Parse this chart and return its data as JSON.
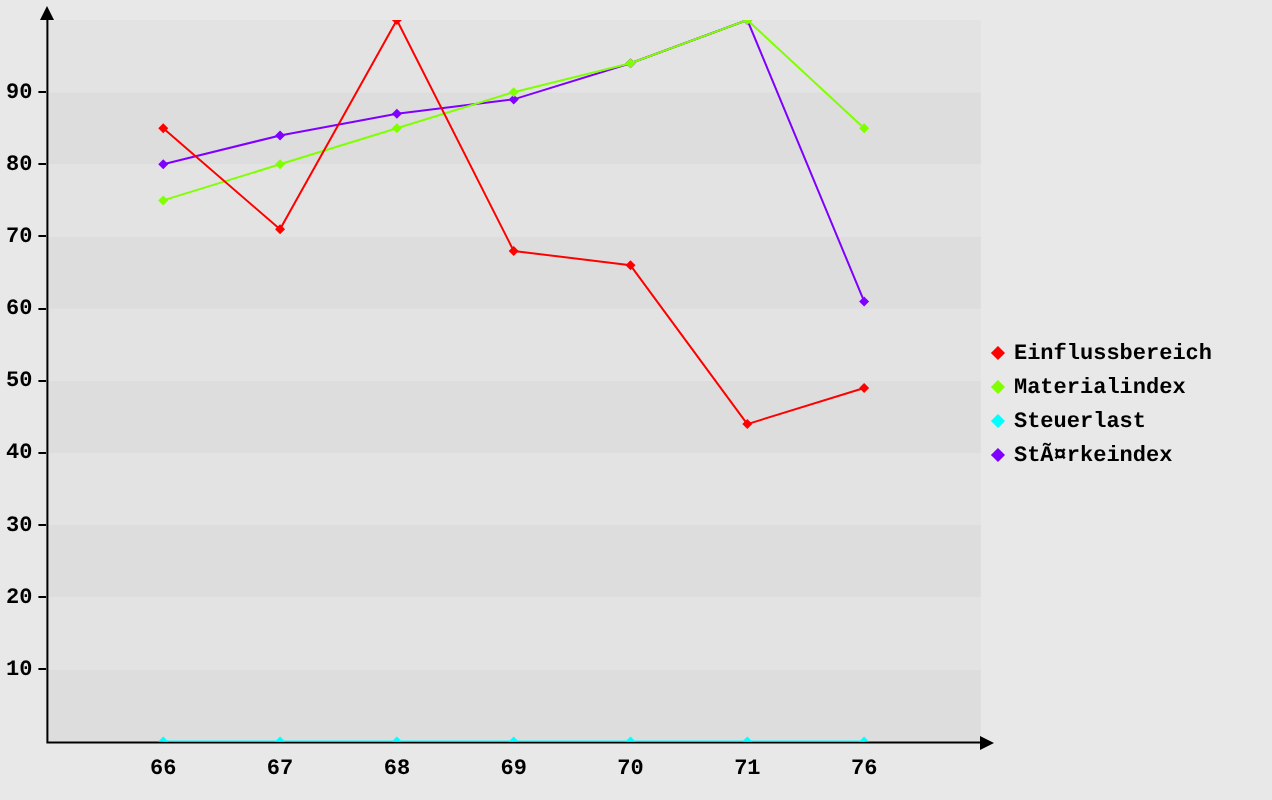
{
  "chart_data": {
    "type": "line",
    "categories": [
      "66",
      "67",
      "68",
      "69",
      "70",
      "71",
      "76"
    ],
    "series": [
      {
        "name": "Einflussbereich",
        "color": "#ff0000",
        "values": [
          85,
          71,
          100,
          68,
          66,
          44,
          49
        ]
      },
      {
        "name": "Materialindex",
        "color": "#80ff00",
        "values": [
          75,
          80,
          85,
          90,
          94,
          100,
          85
        ]
      },
      {
        "name": "Steuerlast",
        "color": "#00ffff",
        "values": [
          0,
          0,
          0,
          0,
          0,
          0,
          0
        ]
      },
      {
        "name": "StÃ¤rkeindex",
        "color": "#8000ff",
        "values": [
          80,
          84,
          87,
          89,
          94,
          100,
          61
        ]
      }
    ],
    "ylim": [
      0,
      100
    ],
    "yticks": [
      10,
      20,
      30,
      40,
      50,
      60,
      70,
      80,
      90
    ],
    "legend": "right",
    "marker": "diamond",
    "line_style": "solid"
  }
}
